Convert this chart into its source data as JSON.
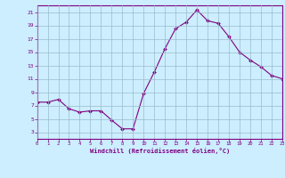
{
  "x": [
    0,
    1,
    2,
    3,
    4,
    5,
    6,
    7,
    8,
    9,
    10,
    11,
    12,
    13,
    14,
    15,
    16,
    17,
    18,
    19,
    20,
    21,
    22,
    23
  ],
  "y": [
    7.5,
    7.5,
    7.9,
    6.5,
    6.0,
    6.2,
    6.2,
    4.8,
    3.5,
    3.5,
    8.8,
    12.0,
    15.5,
    18.5,
    19.5,
    21.3,
    19.7,
    19.3,
    17.3,
    15.0,
    13.8,
    12.8,
    11.5,
    11.0
  ],
  "xlim": [
    0,
    23
  ],
  "ylim": [
    2,
    22
  ],
  "yticks": [
    3,
    5,
    7,
    9,
    11,
    13,
    15,
    17,
    19,
    21
  ],
  "xticks": [
    0,
    1,
    2,
    3,
    4,
    5,
    6,
    7,
    8,
    9,
    10,
    11,
    12,
    13,
    14,
    15,
    16,
    17,
    18,
    19,
    20,
    21,
    22,
    23
  ],
  "xlabel": "Windchill (Refroidissement éolien,°C)",
  "line_color": "#800080",
  "marker": "D",
  "bg_color": "#cceeff",
  "grid_color": "#99bbcc"
}
